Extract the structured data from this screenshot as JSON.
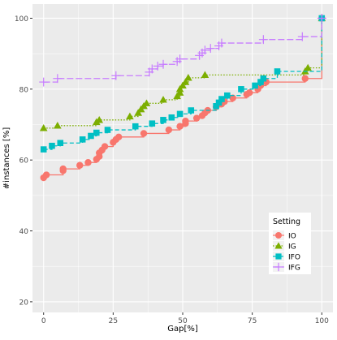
{
  "chart_data": {
    "type": "line",
    "xlabel": "Gap[%]",
    "ylabel": "#instances [%]",
    "xlim": [
      -4,
      104
    ],
    "ylim": [
      17,
      104
    ],
    "x_ticks": [
      0,
      25,
      50,
      75,
      100
    ],
    "y_ticks": [
      20,
      40,
      60,
      80,
      100
    ],
    "grid": true,
    "background": "#EBEBEB",
    "legend": {
      "title": "Setting",
      "position": "lower-right-inside"
    },
    "series": [
      {
        "name": "IO",
        "color": "#F8766D",
        "marker": "circle",
        "line": "solid",
        "x": [
          0,
          1,
          7,
          7,
          13,
          16,
          19,
          20,
          20,
          21,
          22,
          25,
          26,
          27,
          36,
          45,
          49,
          51,
          51,
          55,
          57,
          58,
          59,
          62,
          64,
          65,
          68,
          73,
          74,
          77,
          78,
          80,
          94,
          100
        ],
        "y": [
          55,
          55.8,
          57,
          57.5,
          58.5,
          59.3,
          60.2,
          61,
          62,
          62.8,
          63.8,
          65,
          65.8,
          66.5,
          67.5,
          68.5,
          69.5,
          70.3,
          71,
          71.8,
          72.5,
          73.3,
          74,
          75,
          75.8,
          76.5,
          77.5,
          78.5,
          79,
          80,
          81,
          82,
          83,
          100
        ]
      },
      {
        "name": "IG",
        "color": "#7CAE00",
        "marker": "triangle",
        "line": "dotted",
        "x": [
          0,
          5,
          19,
          20,
          31,
          34,
          35,
          36,
          37,
          43,
          48,
          49,
          49,
          50,
          51,
          52,
          58,
          94,
          95,
          100
        ],
        "y": [
          69,
          69.7,
          70.7,
          71.3,
          72.3,
          73.3,
          74.3,
          75.2,
          76,
          77,
          78,
          79,
          80,
          81,
          82,
          83.2,
          84,
          85,
          86,
          100
        ]
      },
      {
        "name": "IFO",
        "color": "#00BFC4",
        "marker": "square",
        "line": "dashed",
        "x": [
          0,
          3,
          6,
          14,
          17,
          19,
          23,
          33,
          39,
          43,
          46,
          49,
          53,
          62,
          63,
          64,
          66,
          71,
          76,
          78,
          79,
          84,
          100
        ],
        "y": [
          63,
          64,
          64.8,
          65.8,
          66.8,
          67.7,
          68.5,
          69.5,
          70.3,
          71.3,
          72,
          73,
          74,
          75.2,
          76.2,
          77.2,
          78.2,
          80,
          81,
          82,
          83,
          85,
          100
        ]
      },
      {
        "name": "IFG",
        "color": "#C77CFF",
        "marker": "plus",
        "line": "longdash",
        "x": [
          0,
          5,
          26,
          38,
          39,
          41,
          43,
          48,
          49,
          56,
          57,
          58,
          60,
          63,
          64,
          79,
          93,
          100
        ],
        "y": [
          82,
          83,
          83.8,
          84.8,
          85.7,
          86.5,
          87,
          87.8,
          88.5,
          89.5,
          90.2,
          91,
          91.5,
          92.2,
          93,
          94,
          94.8,
          100
        ]
      }
    ]
  }
}
